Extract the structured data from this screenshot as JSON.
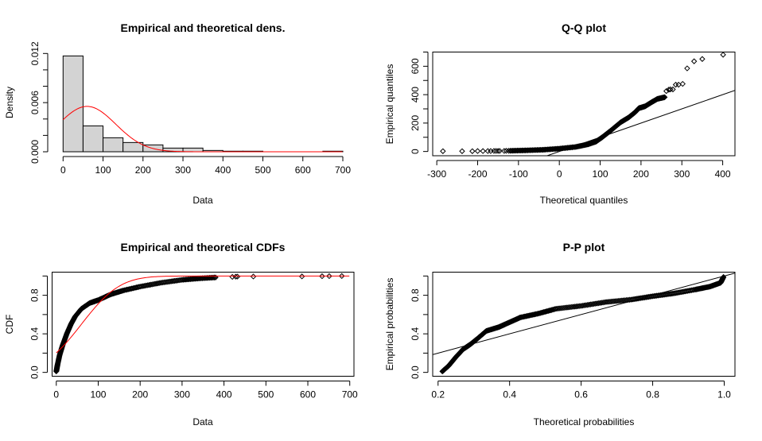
{
  "chart_data": [
    {
      "id": "density",
      "type": "bar",
      "title": "Empirical and theoretical dens.",
      "xlabel": "Data",
      "ylabel": "Density",
      "xlim": [
        0,
        700
      ],
      "ylim": [
        0,
        0.012
      ],
      "xticks": [
        0,
        100,
        200,
        300,
        400,
        500,
        600,
        700
      ],
      "xtick_labels": [
        "0",
        "100",
        "200",
        "300",
        "400",
        "500",
        "600",
        "700"
      ],
      "yticks": [
        0,
        0.002,
        0.004,
        0.006,
        0.008,
        0.01,
        0.012
      ],
      "ytick_labels": [
        "0.000",
        "",
        "",
        "0.006",
        "",
        "",
        "0.012"
      ],
      "bin_edges": [
        0,
        50,
        100,
        150,
        200,
        250,
        300,
        350,
        400,
        450,
        500,
        550,
        600,
        650,
        700
      ],
      "values": [
        0.0117,
        0.00316,
        0.00171,
        0.00113,
        0.00084,
        0.00045,
        0.00045,
        0.00016,
        7e-05,
        7e-05,
        0,
        0,
        0,
        7e-05
      ],
      "bar_fill": "#d3d3d3",
      "theoretical": {
        "distribution": "normal",
        "mean": 60,
        "sd": 72,
        "color": "#ff0000"
      }
    },
    {
      "id": "qq",
      "type": "scatter",
      "title": "Q-Q plot",
      "xlabel": "Theoretical quantiles",
      "ylabel": "Empirical quantiles",
      "xlim": [
        -310,
        430
      ],
      "ylim": [
        -30,
        700
      ],
      "xticks": [
        -300,
        -200,
        -100,
        0,
        100,
        200,
        300,
        400
      ],
      "xtick_labels": [
        "-300",
        "-200",
        "-100",
        "0",
        "100",
        "200",
        "300",
        "400"
      ],
      "yticks": [
        0,
        100,
        200,
        300,
        400,
        500,
        600,
        700
      ],
      "ytick_labels": [
        "0",
        "",
        "200",
        "",
        "400",
        "",
        "600",
        ""
      ],
      "reference_line": {
        "slope": 1,
        "intercept": 0
      },
      "sparse_points": [
        [
          -285,
          2
        ],
        [
          -238,
          2
        ],
        [
          -213,
          2
        ],
        [
          -200,
          3
        ],
        [
          -187,
          3
        ],
        [
          -175,
          3
        ],
        [
          -168,
          3
        ],
        [
          -160,
          4
        ],
        [
          -155,
          4
        ],
        [
          -150,
          4
        ],
        [
          -146,
          4
        ],
        [
          -135,
          4
        ],
        [
          -130,
          5
        ],
        [
          -124,
          5
        ],
        [
          262,
          425
        ],
        [
          268,
          435
        ],
        [
          272,
          437
        ],
        [
          278,
          437
        ],
        [
          285,
          470
        ],
        [
          292,
          470
        ],
        [
          302,
          476
        ],
        [
          313,
          585
        ],
        [
          330,
          635
        ],
        [
          350,
          651
        ],
        [
          401,
          681
        ]
      ],
      "dense_curve": [
        [
          -120,
          5
        ],
        [
          -80,
          8
        ],
        [
          -40,
          12
        ],
        [
          0,
          20
        ],
        [
          40,
          32
        ],
        [
          70,
          50
        ],
        [
          90,
          70
        ],
        [
          105,
          100
        ],
        [
          125,
          145
        ],
        [
          150,
          205
        ],
        [
          170,
          240
        ],
        [
          185,
          275
        ],
        [
          195,
          305
        ],
        [
          210,
          318
        ],
        [
          225,
          345
        ],
        [
          240,
          370
        ],
        [
          258,
          382
        ]
      ]
    },
    {
      "id": "cdf",
      "type": "scatter",
      "title": "Empirical and theoretical CDFs",
      "xlabel": "Data",
      "ylabel": "CDF",
      "xlim": [
        -10,
        710
      ],
      "ylim": [
        -0.04,
        1.04
      ],
      "xticks": [
        0,
        100,
        200,
        300,
        400,
        500,
        600,
        700
      ],
      "xtick_labels": [
        "0",
        "100",
        "200",
        "300",
        "400",
        "500",
        "600",
        "700"
      ],
      "yticks": [
        0,
        0.2,
        0.4,
        0.6,
        0.8,
        1.0
      ],
      "ytick_labels": [
        "0.0",
        "",
        "0.4",
        "",
        "0.8",
        ""
      ],
      "sparse_points": [
        [
          420,
          0.991
        ],
        [
          428,
          0.993
        ],
        [
          432,
          0.994
        ],
        [
          470,
          0.995
        ],
        [
          586,
          0.996
        ],
        [
          634,
          0.998
        ],
        [
          651,
          0.999
        ],
        [
          681,
          1.0
        ]
      ],
      "dense_curve": [
        [
          0,
          0.01
        ],
        [
          3,
          0.08
        ],
        [
          8,
          0.18
        ],
        [
          15,
          0.28
        ],
        [
          25,
          0.4
        ],
        [
          35,
          0.5
        ],
        [
          45,
          0.58
        ],
        [
          60,
          0.66
        ],
        [
          80,
          0.72
        ],
        [
          100,
          0.75
        ],
        [
          130,
          0.81
        ],
        [
          160,
          0.85
        ],
        [
          200,
          0.89
        ],
        [
          250,
          0.93
        ],
        [
          300,
          0.96
        ],
        [
          340,
          0.975
        ],
        [
          380,
          0.985
        ]
      ],
      "theoretical": {
        "distribution": "normal",
        "mean": 60,
        "sd": 72,
        "color": "#ff0000"
      }
    },
    {
      "id": "pp",
      "type": "scatter",
      "title": "P-P plot",
      "xlabel": "Theoretical probabilities",
      "ylabel": "Empirical probabilities",
      "xlim": [
        0.185,
        1.03
      ],
      "ylim": [
        -0.04,
        1.04
      ],
      "xticks": [
        0.2,
        0.4,
        0.6,
        0.8,
        1.0
      ],
      "xtick_labels": [
        "0.2",
        "0.4",
        "0.6",
        "0.8",
        "1.0"
      ],
      "yticks": [
        0,
        0.2,
        0.4,
        0.6,
        0.8,
        1.0
      ],
      "ytick_labels": [
        "0.0",
        "",
        "0.4",
        "",
        "0.8",
        ""
      ],
      "reference_line": {
        "slope": 1,
        "intercept": 0
      },
      "dense_curve": [
        [
          0.212,
          0.01
        ],
        [
          0.23,
          0.07
        ],
        [
          0.25,
          0.16
        ],
        [
          0.27,
          0.24
        ],
        [
          0.29,
          0.29
        ],
        [
          0.31,
          0.35
        ],
        [
          0.335,
          0.43
        ],
        [
          0.37,
          0.47
        ],
        [
          0.4,
          0.52
        ],
        [
          0.43,
          0.57
        ],
        [
          0.48,
          0.61
        ],
        [
          0.53,
          0.66
        ],
        [
          0.6,
          0.69
        ],
        [
          0.67,
          0.73
        ],
        [
          0.74,
          0.755
        ],
        [
          0.8,
          0.79
        ],
        [
          0.86,
          0.82
        ],
        [
          0.92,
          0.86
        ],
        [
          0.96,
          0.89
        ],
        [
          0.99,
          0.93
        ],
        [
          0.998,
          0.99
        ]
      ]
    }
  ]
}
